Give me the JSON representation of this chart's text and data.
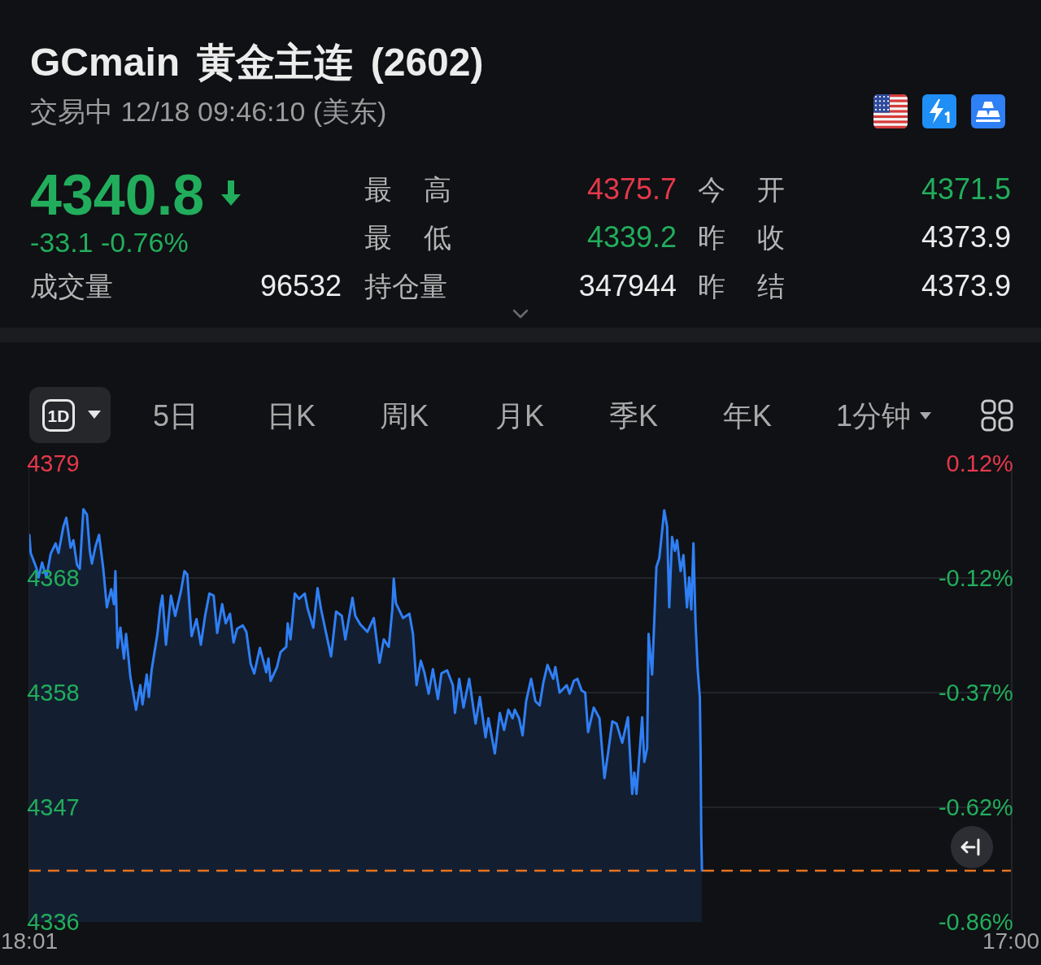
{
  "chart_data": {
    "type": "area",
    "title": "GCmain 黄金主连 (2602)",
    "subtitle": "交易中 12/18 09:46:10 (美东)",
    "annotations": [
      "4340.8",
      "-33.1 -0.76%",
      "最 高",
      "4375.7",
      "今 开",
      "4371.5",
      "最 低",
      "4339.2",
      "昨 收",
      "4373.9",
      "成交量",
      "96532",
      "持仓量",
      "347944",
      "昨 结",
      "4373.9",
      "1D",
      "5日",
      "日K",
      "周K",
      "月K",
      "季K",
      "年K",
      "1分钟"
    ],
    "x": [
      "--12-17T18:01",
      "--12-17T18:03",
      "--12-17T18:11",
      "--12-17T18:14",
      "--12-17T18:19",
      "--12-17T18:25",
      "--12-17T18:31",
      "--12-17T18:38",
      "--12-17T18:42",
      "--12-17T18:49",
      "--12-17T18:53",
      "--12-17T18:59",
      "--12-17T19:03",
      "--12-17T19:08",
      "--12-17T19:12",
      "--12-17T19:17",
      "--12-17T19:22",
      "--12-17T19:26",
      "--12-17T19:29",
      "--12-17T19:34",
      "--12-17T19:39",
      "--12-17T19:45",
      "--12-17T19:50",
      "--12-17T19:56",
      "--12-17T20:00",
      "--12-17T20:02",
      "--12-17T20:05",
      "--12-17T20:09",
      "--12-17T20:14",
      "--12-17T20:17",
      "--12-17T20:23",
      "--12-17T20:31",
      "--12-17T20:37",
      "--12-17T20:40",
      "--12-17T20:46",
      "--12-17T20:49",
      "--12-17T20:53",
      "--12-17T21:01",
      "--12-17T21:05",
      "--12-17T21:08",
      "--12-17T21:13",
      "--12-17T21:20",
      "--12-17T21:26",
      "--12-17T21:34",
      "--12-17T21:39",
      "--12-17T21:43",
      "--12-17T21:49",
      "--12-17T21:56",
      "--12-17T22:02",
      "--12-17T22:08",
      "--12-17T22:14",
      "--12-17T22:20",
      "--12-17T22:25",
      "--12-17T22:32",
      "--12-17T22:37",
      "--12-17T22:43",
      "--12-17T22:48",
      "--12-17T22:53",
      "--12-17T23:01",
      "--12-17T23:06",
      "--12-17T23:12",
      "--12-17T23:17",
      "--12-17T23:25",
      "--12-17T23:34",
      "--12-17T23:37",
      "--12-17T23:40",
      "--12-17T23:49",
      "--12-17T23:54",
      "--12-18T00:02",
      "--12-18T00:04",
      "--12-18T00:08",
      "--12-18T00:14",
      "--12-18T00:20",
      "--12-18T00:28",
      "--12-18T00:32",
      "--12-18T00:40",
      "--12-18T00:46",
      "--12-18T00:51",
      "--12-18T00:57",
      "--12-18T01:05",
      "--12-18T01:12",
      "--12-18T01:20",
      "--12-18T01:25",
      "--12-18T01:35",
      "--12-18T01:39",
      "--12-18T01:46",
      "--12-18T01:56",
      "--12-18T02:05",
      "--12-18T02:13",
      "--12-18T02:19",
      "--12-18T02:26",
      "--12-18T02:31",
      "--12-18T02:33",
      "--12-18T02:36",
      "--12-18T02:46",
      "--12-18T02:55",
      "--12-18T03:00",
      "--12-18T03:05",
      "--12-18T03:11",
      "--12-18T03:16",
      "--12-18T03:22",
      "--12-18T03:28",
      "--12-18T03:35",
      "--12-18T03:40",
      "--12-18T03:48",
      "--12-18T03:56",
      "--12-18T03:59",
      "--12-18T04:05",
      "--12-18T04:11",
      "--12-18T04:19",
      "--12-18T04:28",
      "--12-18T04:34",
      "--12-18T04:42",
      "--12-18T04:46",
      "--12-18T04:55",
      "--12-18T05:02",
      "--12-18T05:08",
      "--12-18T05:14",
      "--12-18T05:20",
      "--12-18T05:23",
      "--12-18T05:29",
      "--12-18T05:34",
      "--12-18T05:39",
      "--12-18T05:46",
      "--12-18T05:52",
      "--12-18T05:58",
      "--12-18T06:03",
      "--12-18T06:09",
      "--12-18T06:17",
      "--12-18T06:20",
      "--12-18T06:26",
      "--12-18T06:36",
      "--12-18T06:40",
      "--12-18T06:46",
      "--12-18T06:51",
      "--12-18T06:57",
      "--12-18T07:02",
      "--12-18T07:06",
      "--12-18T07:14",
      "--12-18T07:22",
      "--12-18T07:29",
      "--12-18T07:34",
      "--12-18T07:40",
      "--12-18T07:46",
      "--12-18T07:54",
      "--12-18T08:02",
      "--12-18T08:08",
      "--12-18T08:11",
      "--12-18T08:14",
      "--12-18T08:22",
      "--12-18T08:25",
      "--12-18T08:29",
      "--12-18T08:31",
      "--12-18T08:36",
      "--12-18T08:42",
      "--12-18T08:46",
      "--12-18T08:49",
      "--12-18T08:53",
      "--12-18T08:57",
      "--12-18T09:00",
      "--12-18T09:04",
      "--12-18T09:08",
      "--12-18T09:11",
      "--12-18T09:16",
      "--12-18T09:20",
      "--12-18T09:25",
      "--12-18T09:28",
      "--12-18T09:31",
      "--12-18T09:34",
      "--12-18T09:37",
      "--12-18T09:40",
      "--12-18T09:43",
      "--12-18T09:44",
      "--12-18T09:45",
      "--12-18T09:46"
    ],
    "series": [
      {
        "color": "#2f7ff5",
        "values": [
          4372.3,
          4370.6,
          4369.2,
          4368.3,
          4369.7,
          4368.3,
          4370.5,
          4371.5,
          4370.6,
          4373.1,
          4373.9,
          4371.1,
          4371.8,
          4369.5,
          4369.1,
          4374.7,
          4374.2,
          4370.8,
          4369.6,
          4371.2,
          4372.3,
          4369.1,
          4365.5,
          4367.2,
          4365.8,
          4368.9,
          4361.7,
          4363.6,
          4360.7,
          4363.0,
          4359.0,
          4355.9,
          4358.2,
          4356.4,
          4359.2,
          4357.1,
          4359.7,
          4363.0,
          4365.5,
          4366.6,
          4362.0,
          4366.6,
          4364.7,
          4367.0,
          4368.9,
          4368.6,
          4362.8,
          4364.4,
          4362.0,
          4364.7,
          4366.8,
          4366.6,
          4363.1,
          4365.8,
          4364.0,
          4364.9,
          4362.2,
          4363.5,
          4363.8,
          4363.2,
          4360.2,
          4359.3,
          4361.7,
          4359.4,
          4360.7,
          4358.6,
          4359.9,
          4361.3,
          4361.8,
          4364.0,
          4362.5,
          4366.8,
          4366.3,
          4366.8,
          4365.4,
          4363.6,
          4367.3,
          4365.3,
          4363.4,
          4360.9,
          4365.1,
          4364.7,
          4362.5,
          4366.4,
          4364.7,
          4363.9,
          4363.2,
          4364.5,
          4360.3,
          4362.5,
          4361.8,
          4365.3,
          4368.2,
          4365.9,
          4364.5,
          4364.9,
          4363.0,
          4358.2,
          4360.5,
          4359.4,
          4357.4,
          4359.7,
          4356.9,
          4359.3,
          4359.6,
          4358.2,
          4355.6,
          4358.8,
          4356.1,
          4358.8,
          4354.6,
          4357.1,
          4353.3,
          4355.1,
          4351.8,
          4355.6,
          4354.0,
          4355.9,
          4355.1,
          4355.9,
          4355.1,
          4353.5,
          4356.7,
          4358.8,
          4356.7,
          4356.3,
          4358.4,
          4360.1,
          4358.8,
          4359.9,
          4357.5,
          4358.2,
          4357.4,
          4358.6,
          4358.8,
          4357.7,
          4357.5,
          4353.8,
          4356.1,
          4355.1,
          4349.5,
          4351.8,
          4354.8,
          4354.6,
          4352.8,
          4355.2,
          4348.0,
          4350.0,
          4348.0,
          4355.2,
          4351.0,
          4352.3,
          4363.0,
          4359.2,
          4369.3,
          4370.1,
          4372.0,
          4374.6,
          4373.1,
          4365.5,
          4372.1,
          4370.8,
          4371.8,
          4368.9,
          4370.4,
          4365.5,
          4368.3,
          4365.3,
          4371.5,
          4364.0,
          4359.7,
          4357.1,
          4352.3,
          4344.2,
          4340.8
        ]
      }
    ],
    "xlim": [
      "--12-17T18:01",
      "--12-18T17:00"
    ],
    "xticks": [
      {
        "value": "--12-17T18:01",
        "label": "18:01"
      },
      {
        "value": "--12-18T17:00",
        "label": "17:00"
      }
    ],
    "ylim": [
      4336,
      4379
    ],
    "yticks": [
      4379,
      {
        "value": 4368.25,
        "label": "4368"
      },
      {
        "value": 4357.5,
        "label": "4358"
      },
      {
        "value": 4346.75,
        "label": "4347"
      },
      4336
    ],
    "y2lim": [
      -0.86,
      0.12
    ],
    "y2ticks": [
      {
        "value": 0.12,
        "label": "0.12%"
      },
      {
        "value": -0.125,
        "label": "-0.12%"
      },
      {
        "value": -0.37,
        "label": "-0.37%"
      },
      {
        "value": -0.615,
        "label": "-0.62%"
      },
      {
        "value": -0.86,
        "label": "-0.86%"
      }
    ],
    "ref_lines": [
      {
        "axis": "y",
        "value": 4340.8,
        "color": "#e8731f",
        "line_style": "dashed"
      }
    ],
    "grid": "y",
    "marker": "none",
    "line_style": "solid"
  }
}
